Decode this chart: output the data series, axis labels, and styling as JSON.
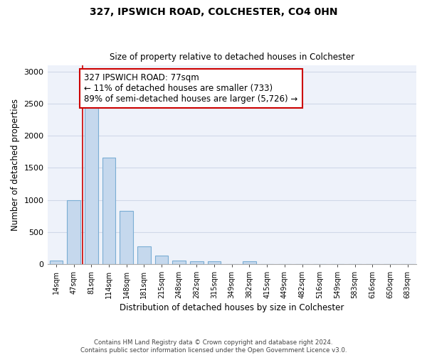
{
  "title1": "327, IPSWICH ROAD, COLCHESTER, CO4 0HN",
  "title2": "Size of property relative to detached houses in Colchester",
  "xlabel": "Distribution of detached houses by size in Colchester",
  "ylabel": "Number of detached properties",
  "footer1": "Contains HM Land Registry data © Crown copyright and database right 2024.",
  "footer2": "Contains public sector information licensed under the Open Government Licence v3.0.",
  "annotation_line1": "327 IPSWICH ROAD: 77sqm",
  "annotation_line2": "← 11% of detached houses are smaller (733)",
  "annotation_line3": "89% of semi-detached houses are larger (5,726) →",
  "bar_values": [
    55,
    1000,
    2470,
    1660,
    830,
    270,
    125,
    55,
    45,
    35,
    0,
    35,
    0,
    0,
    0,
    0,
    0,
    0,
    0,
    0,
    0
  ],
  "bin_labels": [
    "14sqm",
    "47sqm",
    "81sqm",
    "114sqm",
    "148sqm",
    "181sqm",
    "215sqm",
    "248sqm",
    "282sqm",
    "315sqm",
    "349sqm",
    "382sqm",
    "415sqm",
    "449sqm",
    "482sqm",
    "516sqm",
    "549sqm",
    "583sqm",
    "616sqm",
    "650sqm",
    "683sqm"
  ],
  "bar_color": "#c5d8ed",
  "bar_edge_color": "#7aadd4",
  "grid_color": "#d0d8e8",
  "vline_color": "#cc0000",
  "annotation_box_color": "#cc0000",
  "background_color": "#eef2fa",
  "ylim": [
    0,
    3100
  ],
  "yticks": [
    0,
    500,
    1000,
    1500,
    2000,
    2500,
    3000
  ]
}
